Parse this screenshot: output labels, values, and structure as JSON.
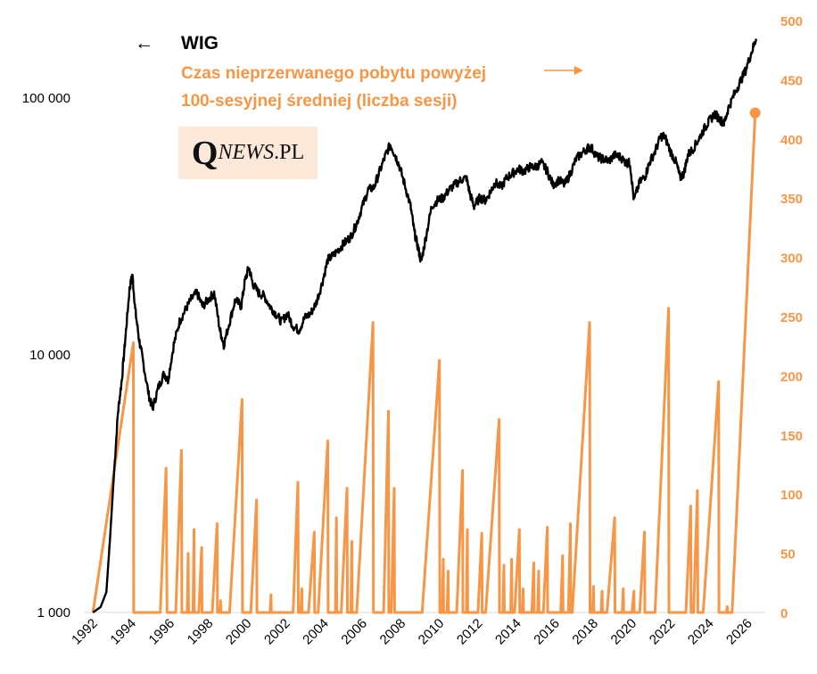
{
  "logo": {
    "q": "Q",
    "news": "NEWS",
    "pl": ".PL"
  },
  "legend": {
    "wig_arrow": "←",
    "wig_label": "WIG",
    "orange_line1": "Czas nieprzerwanego pobytu powyżej",
    "orange_line2": "100-sesyjnej średniej (liczba sesji)",
    "orange_arrow": "⟶"
  },
  "colors": {
    "wig": "#000000",
    "streak": "#f79646",
    "logo_bg": "#fde9d9"
  },
  "chart_data": {
    "type": "line",
    "x_range": [
      1992,
      2026.7
    ],
    "x_ticks": [
      "1992",
      "1994",
      "1996",
      "1998",
      "2000",
      "2002",
      "2004",
      "2006",
      "2008",
      "2010",
      "2012",
      "2014",
      "2016",
      "2018",
      "2020",
      "2022",
      "2024",
      "2026"
    ],
    "left_axis": {
      "scale": "log",
      "range": [
        1000,
        500000
      ],
      "ticks": [
        "1 000",
        "10 000",
        "100 000"
      ],
      "tick_values": [
        1000,
        10000,
        100000
      ]
    },
    "right_axis": {
      "scale": "linear",
      "range": [
        0,
        500
      ],
      "ticks": [
        "0",
        "50",
        "100",
        "150",
        "200",
        "250",
        "300",
        "350",
        "400",
        "450",
        "500"
      ]
    },
    "series": [
      {
        "name": "WIG",
        "axis": "left",
        "points": [
          [
            1992.1,
            1000
          ],
          [
            1992.5,
            1050
          ],
          [
            1992.8,
            1200
          ],
          [
            1993.0,
            2000
          ],
          [
            1993.2,
            3500
          ],
          [
            1993.4,
            6000
          ],
          [
            1993.6,
            8000
          ],
          [
            1993.8,
            12000
          ],
          [
            1994.0,
            18000
          ],
          [
            1994.15,
            20700
          ],
          [
            1994.3,
            15000
          ],
          [
            1994.5,
            11500
          ],
          [
            1994.7,
            9500
          ],
          [
            1995.0,
            7000
          ],
          [
            1995.2,
            6200
          ],
          [
            1995.5,
            7500
          ],
          [
            1995.8,
            8500
          ],
          [
            1996.0,
            8000
          ],
          [
            1996.3,
            11000
          ],
          [
            1996.6,
            13500
          ],
          [
            1996.9,
            15000
          ],
          [
            1997.2,
            16500
          ],
          [
            1997.5,
            17500
          ],
          [
            1997.8,
            15500
          ],
          [
            1998.1,
            16500
          ],
          [
            1998.4,
            17500
          ],
          [
            1998.7,
            12500
          ],
          [
            1998.9,
            11000
          ],
          [
            1999.2,
            13500
          ],
          [
            1999.5,
            16500
          ],
          [
            1999.8,
            15500
          ],
          [
            2000.0,
            19500
          ],
          [
            2000.2,
            22000
          ],
          [
            2000.4,
            19000
          ],
          [
            2000.7,
            17500
          ],
          [
            2001.0,
            17000
          ],
          [
            2001.3,
            15500
          ],
          [
            2001.6,
            14500
          ],
          [
            2001.9,
            13500
          ],
          [
            2002.2,
            14500
          ],
          [
            2002.5,
            13000
          ],
          [
            2002.8,
            12500
          ],
          [
            2003.1,
            14000
          ],
          [
            2003.4,
            14500
          ],
          [
            2003.7,
            16000
          ],
          [
            2004.0,
            19000
          ],
          [
            2004.3,
            23500
          ],
          [
            2004.6,
            24500
          ],
          [
            2004.9,
            26000
          ],
          [
            2005.2,
            27500
          ],
          [
            2005.5,
            29000
          ],
          [
            2005.8,
            32500
          ],
          [
            2006.1,
            38000
          ],
          [
            2006.4,
            44000
          ],
          [
            2006.7,
            45000
          ],
          [
            2007.0,
            52000
          ],
          [
            2007.3,
            60000
          ],
          [
            2007.55,
            66000
          ],
          [
            2007.8,
            60000
          ],
          [
            2008.0,
            55000
          ],
          [
            2008.3,
            46000
          ],
          [
            2008.6,
            38000
          ],
          [
            2008.8,
            30000
          ],
          [
            2009.0,
            26000
          ],
          [
            2009.15,
            23000
          ],
          [
            2009.4,
            29000
          ],
          [
            2009.7,
            38000
          ],
          [
            2010.0,
            40000
          ],
          [
            2010.3,
            41000
          ],
          [
            2010.6,
            44000
          ],
          [
            2010.9,
            46000
          ],
          [
            2011.2,
            48000
          ],
          [
            2011.5,
            49000
          ],
          [
            2011.7,
            42000
          ],
          [
            2011.9,
            38000
          ],
          [
            2012.2,
            41000
          ],
          [
            2012.5,
            40000
          ],
          [
            2012.8,
            44000
          ],
          [
            2013.0,
            47000
          ],
          [
            2013.3,
            45000
          ],
          [
            2013.6,
            49000
          ],
          [
            2013.9,
            51000
          ],
          [
            2014.2,
            53000
          ],
          [
            2014.5,
            52000
          ],
          [
            2014.8,
            54000
          ],
          [
            2015.1,
            54000
          ],
          [
            2015.4,
            56000
          ],
          [
            2015.7,
            52000
          ],
          [
            2016.0,
            46000
          ],
          [
            2016.3,
            48000
          ],
          [
            2016.6,
            46000
          ],
          [
            2016.9,
            51000
          ],
          [
            2017.2,
            58000
          ],
          [
            2017.5,
            61000
          ],
          [
            2017.8,
            64000
          ],
          [
            2018.0,
            64000
          ],
          [
            2018.3,
            59000
          ],
          [
            2018.6,
            58000
          ],
          [
            2018.9,
            57000
          ],
          [
            2019.2,
            60000
          ],
          [
            2019.5,
            59000
          ],
          [
            2019.8,
            56000
          ],
          [
            2020.0,
            56000
          ],
          [
            2020.2,
            40000
          ],
          [
            2020.5,
            47000
          ],
          [
            2020.8,
            50000
          ],
          [
            2021.0,
            56000
          ],
          [
            2021.3,
            62000
          ],
          [
            2021.6,
            71000
          ],
          [
            2021.8,
            71000
          ],
          [
            2022.1,
            62000
          ],
          [
            2022.4,
            56000
          ],
          [
            2022.6,
            49000
          ],
          [
            2022.8,
            51000
          ],
          [
            2023.0,
            60000
          ],
          [
            2023.3,
            64000
          ],
          [
            2023.6,
            70000
          ],
          [
            2023.9,
            77000
          ],
          [
            2024.1,
            81000
          ],
          [
            2024.4,
            87000
          ],
          [
            2024.7,
            82000
          ],
          [
            2024.9,
            80000
          ],
          [
            2025.1,
            91000
          ],
          [
            2025.4,
            103000
          ],
          [
            2025.7,
            115000
          ],
          [
            2026.0,
            128000
          ],
          [
            2026.3,
            150000
          ],
          [
            2026.55,
            170000
          ]
        ]
      },
      {
        "name": "Czas nieprzerwanego pobytu powyżej 100-sesyjnej średniej (liczba sesji)",
        "axis": "right",
        "points": [
          [
            1992.1,
            0
          ],
          [
            1994.2,
            228
          ],
          [
            1994.22,
            0
          ],
          [
            1995.6,
            0
          ],
          [
            1995.9,
            122
          ],
          [
            1995.95,
            0
          ],
          [
            1996.4,
            0
          ],
          [
            1996.7,
            137
          ],
          [
            1996.72,
            0
          ],
          [
            1997.0,
            0
          ],
          [
            1997.05,
            50
          ],
          [
            1997.07,
            0
          ],
          [
            1997.3,
            0
          ],
          [
            1997.35,
            70
          ],
          [
            1997.37,
            0
          ],
          [
            1997.6,
            0
          ],
          [
            1997.75,
            55
          ],
          [
            1997.77,
            0
          ],
          [
            1998.3,
            0
          ],
          [
            1998.55,
            75
          ],
          [
            1998.57,
            0
          ],
          [
            1998.7,
            0
          ],
          [
            1998.73,
            10
          ],
          [
            1998.75,
            0
          ],
          [
            1999.2,
            0
          ],
          [
            1999.85,
            180
          ],
          [
            1999.87,
            0
          ],
          [
            2000.3,
            0
          ],
          [
            2000.6,
            95
          ],
          [
            2000.62,
            0
          ],
          [
            2001.3,
            0
          ],
          [
            2001.35,
            15
          ],
          [
            2001.37,
            0
          ],
          [
            2002.5,
            0
          ],
          [
            2002.75,
            110
          ],
          [
            2002.77,
            0
          ],
          [
            2002.9,
            0
          ],
          [
            2002.95,
            20
          ],
          [
            2002.97,
            0
          ],
          [
            2003.3,
            0
          ],
          [
            2003.6,
            68
          ],
          [
            2003.62,
            0
          ],
          [
            2003.8,
            0
          ],
          [
            2004.3,
            145
          ],
          [
            2004.32,
            0
          ],
          [
            2004.7,
            0
          ],
          [
            2004.75,
            80
          ],
          [
            2004.77,
            0
          ],
          [
            2005.0,
            0
          ],
          [
            2005.3,
            105
          ],
          [
            2005.32,
            0
          ],
          [
            2005.5,
            0
          ],
          [
            2005.55,
            60
          ],
          [
            2005.57,
            0
          ],
          [
            2005.8,
            0
          ],
          [
            2006.65,
            245
          ],
          [
            2006.67,
            0
          ],
          [
            2007.2,
            0
          ],
          [
            2007.45,
            170
          ],
          [
            2007.47,
            0
          ],
          [
            2007.6,
            0
          ],
          [
            2007.75,
            105
          ],
          [
            2007.77,
            0
          ],
          [
            2009.2,
            0
          ],
          [
            2010.1,
            213
          ],
          [
            2010.12,
            0
          ],
          [
            2010.25,
            0
          ],
          [
            2010.3,
            45
          ],
          [
            2010.32,
            0
          ],
          [
            2010.5,
            0
          ],
          [
            2010.55,
            35
          ],
          [
            2010.57,
            0
          ],
          [
            2011.0,
            0
          ],
          [
            2011.3,
            120
          ],
          [
            2011.32,
            0
          ],
          [
            2011.5,
            0
          ],
          [
            2011.55,
            70
          ],
          [
            2011.57,
            0
          ],
          [
            2012.1,
            0
          ],
          [
            2012.3,
            67
          ],
          [
            2012.32,
            0
          ],
          [
            2012.5,
            0
          ],
          [
            2013.2,
            163
          ],
          [
            2013.22,
            0
          ],
          [
            2013.4,
            0
          ],
          [
            2013.45,
            40
          ],
          [
            2013.47,
            0
          ],
          [
            2013.8,
            0
          ],
          [
            2013.85,
            45
          ],
          [
            2013.87,
            0
          ],
          [
            2014.0,
            0
          ],
          [
            2014.25,
            70
          ],
          [
            2014.27,
            0
          ],
          [
            2014.4,
            0
          ],
          [
            2014.45,
            20
          ],
          [
            2014.47,
            0
          ],
          [
            2014.9,
            0
          ],
          [
            2015.0,
            42
          ],
          [
            2015.02,
            0
          ],
          [
            2015.2,
            0
          ],
          [
            2015.25,
            35
          ],
          [
            2015.27,
            0
          ],
          [
            2015.5,
            0
          ],
          [
            2015.7,
            72
          ],
          [
            2015.72,
            0
          ],
          [
            2016.4,
            0
          ],
          [
            2016.5,
            48
          ],
          [
            2016.52,
            0
          ],
          [
            2016.8,
            0
          ],
          [
            2016.9,
            75
          ],
          [
            2016.92,
            0
          ],
          [
            2017.0,
            0
          ],
          [
            2017.9,
            245
          ],
          [
            2017.92,
            0
          ],
          [
            2018.05,
            0
          ],
          [
            2018.1,
            22
          ],
          [
            2018.12,
            0
          ],
          [
            2018.5,
            0
          ],
          [
            2018.55,
            18
          ],
          [
            2018.57,
            0
          ],
          [
            2018.8,
            0
          ],
          [
            2019.2,
            80
          ],
          [
            2019.22,
            0
          ],
          [
            2019.6,
            0
          ],
          [
            2019.65,
            20
          ],
          [
            2019.67,
            0
          ],
          [
            2020.1,
            0
          ],
          [
            2020.2,
            18
          ],
          [
            2020.22,
            0
          ],
          [
            2020.5,
            0
          ],
          [
            2020.75,
            68
          ],
          [
            2020.77,
            0
          ],
          [
            2021.3,
            0
          ],
          [
            2022.0,
            257
          ],
          [
            2022.02,
            0
          ],
          [
            2022.9,
            0
          ],
          [
            2023.15,
            90
          ],
          [
            2023.17,
            0
          ],
          [
            2023.3,
            0
          ],
          [
            2023.5,
            103
          ],
          [
            2023.52,
            0
          ],
          [
            2023.8,
            0
          ],
          [
            2024.6,
            195
          ],
          [
            2024.62,
            0
          ],
          [
            2025.0,
            0
          ],
          [
            2025.05,
            5
          ],
          [
            2025.07,
            0
          ],
          [
            2025.3,
            0
          ],
          [
            2026.5,
            422
          ]
        ]
      }
    ]
  }
}
